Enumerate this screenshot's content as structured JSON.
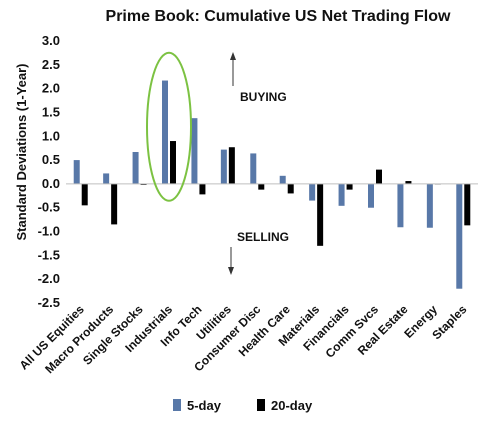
{
  "chart_data": {
    "type": "bar",
    "title": "Prime Book: Cumulative US Net Trading Flow",
    "ylabel": "Standard Deviations (1-Year)",
    "xlabel": "",
    "ylim": [
      -2.5,
      3.0
    ],
    "yticks": [
      "3.0",
      "2.5",
      "2.0",
      "1.5",
      "1.0",
      "0.5",
      "0.0",
      "-0.5",
      "-1.0",
      "-1.5",
      "-2.0",
      "-2.5"
    ],
    "ytick_values": [
      3.0,
      2.5,
      2.0,
      1.5,
      1.0,
      0.5,
      0.0,
      -0.5,
      -1.0,
      -1.5,
      -2.0,
      -2.5
    ],
    "categories": [
      "All US Equities",
      "Macro Products",
      "Single Stocks",
      "Industrials",
      "Info Tech",
      "Utilities",
      "Consumer Disc",
      "Health Care",
      "Materials",
      "Financials",
      "Comm Svcs",
      "Real Estate",
      "Energy",
      "Staples"
    ],
    "series": [
      {
        "name": "5-day",
        "color": "#5878a8",
        "values": [
          0.5,
          0.22,
          0.67,
          2.17,
          1.38,
          0.72,
          0.64,
          0.17,
          -0.35,
          -0.46,
          -0.5,
          -0.91,
          -0.92,
          -2.2
        ]
      },
      {
        "name": "20-day",
        "color": "#000000",
        "values": [
          -0.45,
          -0.85,
          -0.02,
          0.9,
          -0.22,
          0.77,
          -0.12,
          -0.2,
          -1.3,
          -0.12,
          0.3,
          0.06,
          0.0,
          -0.87
        ]
      }
    ],
    "grid": false,
    "legend_position": "bottom-center",
    "annotations": {
      "buying": "BUYING",
      "selling": "SELLING"
    },
    "highlight": {
      "category": "Industrials",
      "shape": "ellipse",
      "color": "#7cc242"
    },
    "axis_color": "#bfbfbf"
  }
}
